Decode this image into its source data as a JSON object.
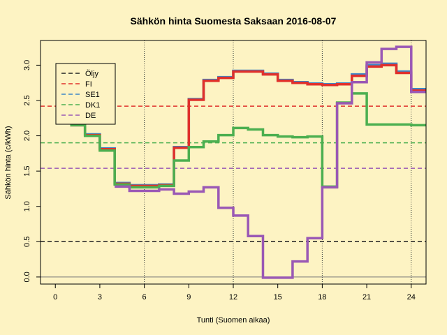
{
  "chart_data": {
    "type": "line",
    "title": "Sähkön hinta Suomesta Saksaan 2016-08-07",
    "xlabel": "Tunti (Suomen aikaa)",
    "ylabel": "Sähkön hinta (c/kWh)",
    "xlim": [
      -1,
      25
    ],
    "ylim": [
      -0.1,
      3.35
    ],
    "xticks": [
      0,
      3,
      6,
      9,
      12,
      15,
      18,
      21,
      24
    ],
    "yticks": [
      0.0,
      0.5,
      1.0,
      1.5,
      2.0,
      2.5,
      3.0
    ],
    "ytick_labels": [
      "0.0",
      "0.5",
      "1.0",
      "1.5",
      "2.0",
      "2.5",
      "3.0"
    ],
    "vlines": [
      6,
      12,
      18,
      24
    ],
    "grid": false,
    "legend_position": "top-left",
    "hlines": [
      {
        "name": "Öljy",
        "value": 0.5,
        "color": "#222222"
      },
      {
        "name": "FI",
        "value": 2.42,
        "color": "#e0302b"
      },
      {
        "name": "SE1",
        "value": 1.9,
        "color": "#3b86c8"
      },
      {
        "name": "DK1",
        "value": 1.9,
        "color": "#4caf50"
      },
      {
        "name": "DE",
        "value": 1.54,
        "color": "#9a58b5"
      }
    ],
    "series": [
      {
        "name": "SE1",
        "color": "#3b86c8",
        "width": 3.5,
        "x_start": 1,
        "values": [
          2.15,
          2.02,
          1.82,
          1.33,
          1.3,
          1.3,
          1.31,
          1.84,
          2.52,
          2.79,
          2.83,
          2.92,
          2.92,
          2.88,
          2.79,
          2.76,
          2.74,
          2.73,
          2.74,
          2.87,
          3.0,
          3.02,
          2.91,
          2.66
        ]
      },
      {
        "name": "FI",
        "color": "#e0302b",
        "width": 3.5,
        "x_start": 1,
        "values": [
          2.15,
          2.01,
          1.81,
          1.32,
          1.29,
          1.29,
          1.3,
          1.83,
          2.51,
          2.78,
          2.82,
          2.91,
          2.91,
          2.87,
          2.78,
          2.75,
          2.73,
          2.72,
          2.73,
          2.85,
          2.98,
          3.0,
          2.89,
          2.64
        ]
      },
      {
        "name": "DK1",
        "color": "#4caf50",
        "width": 3.5,
        "x_start": 1,
        "values": [
          2.15,
          2.0,
          1.79,
          1.31,
          1.27,
          1.27,
          1.29,
          1.65,
          1.84,
          1.92,
          2.01,
          2.11,
          2.09,
          2.01,
          1.99,
          1.98,
          1.99,
          1.28,
          2.47,
          2.6,
          2.16,
          2.16,
          2.16,
          2.15
        ]
      },
      {
        "name": "DE",
        "color": "#9a58b5",
        "width": 3.5,
        "x_start": 4,
        "values": [
          1.28,
          1.22,
          1.22,
          1.24,
          1.18,
          1.21,
          1.27,
          0.98,
          0.87,
          0.58,
          -0.01,
          -0.01,
          0.22,
          0.55,
          1.27,
          2.46,
          2.76,
          3.04,
          3.23,
          3.26,
          2.62
        ]
      }
    ]
  }
}
